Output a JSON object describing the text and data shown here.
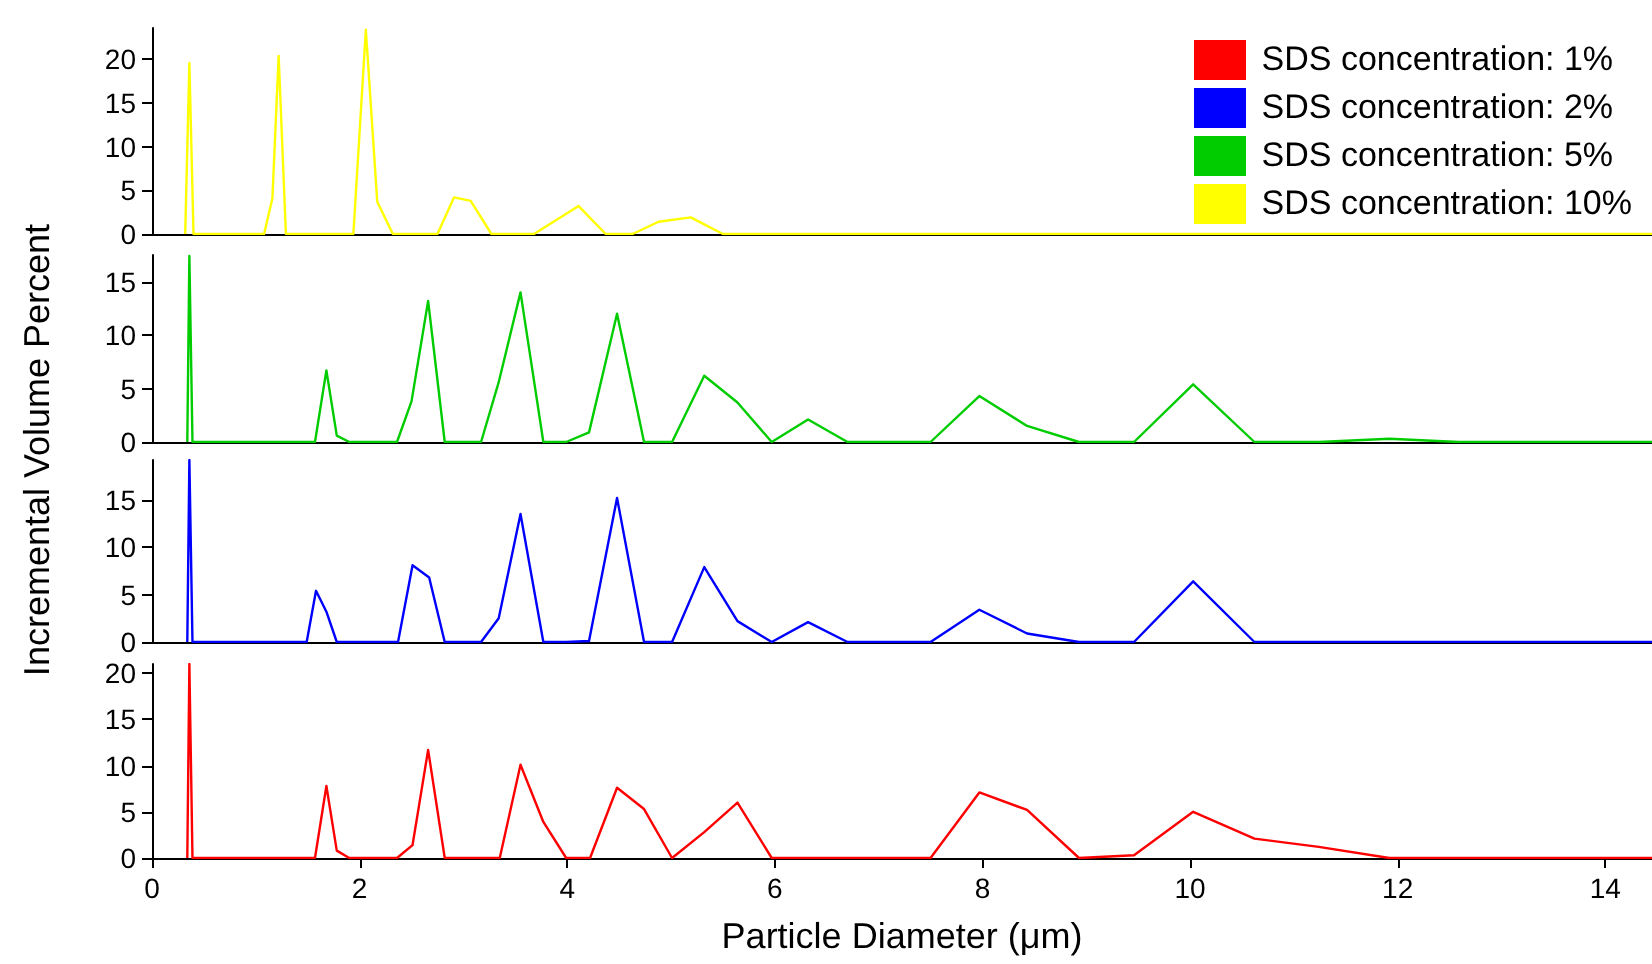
{
  "chart_data": [
    {
      "type": "line",
      "legend": "right",
      "tick_labels": "y",
      "xlim": [
        0,
        14.45
      ],
      "xticks": [
        0,
        2,
        4,
        6,
        8,
        10,
        12,
        14
      ],
      "ylim": [
        0,
        23.6
      ],
      "yticks": [
        0,
        5,
        10,
        15,
        20
      ],
      "series": [
        {
          "name": "SDS concentration: 10%",
          "color": "#ffff00",
          "x": [
            0.32,
            0.36,
            0.4,
            1.08,
            1.16,
            1.22,
            1.29,
            1.94,
            2.06,
            2.17,
            2.32,
            2.75,
            2.91,
            3.07,
            3.27,
            3.68,
            4.11,
            4.37,
            4.63,
            4.88,
            5.19,
            5.5,
            14.45
          ],
          "values": [
            0,
            19.6,
            0,
            0,
            4.1,
            20.4,
            0,
            0,
            23.4,
            3.7,
            0,
            0,
            4.2,
            3.8,
            0,
            0,
            3.2,
            0,
            0,
            1.4,
            1.9,
            0,
            0
          ]
        }
      ]
    },
    {
      "type": "line",
      "legend": "top right",
      "tick_labels": "y",
      "xlim": [
        0,
        14.45
      ],
      "xticks": [
        0,
        2,
        4,
        6,
        8,
        10,
        12,
        14
      ],
      "ylim": [
        0,
        17.5
      ],
      "yticks": [
        0,
        5,
        10,
        15
      ],
      "series": [
        {
          "name": "SDS concentration: 5%",
          "color": "#00cc00",
          "x": [
            0.34,
            0.36,
            0.39,
            1.57,
            1.68,
            1.78,
            1.9,
            2.36,
            2.5,
            2.66,
            2.82,
            3.17,
            3.34,
            3.55,
            3.77,
            3.99,
            4.21,
            4.48,
            4.74,
            5.01,
            5.32,
            5.64,
            5.97,
            6.32,
            6.7,
            7.5,
            7.97,
            8.43,
            8.93,
            9.46,
            10.03,
            10.62,
            11.24,
            11.92,
            12.59,
            14.45
          ],
          "values": [
            0,
            17.4,
            0,
            0,
            6.7,
            0.6,
            0,
            0,
            3.8,
            13.2,
            0,
            0,
            5.6,
            14.0,
            0,
            0,
            0.9,
            12.0,
            0,
            0,
            6.2,
            3.7,
            0,
            2.1,
            0,
            0,
            4.3,
            1.5,
            0,
            0,
            5.4,
            0,
            0,
            0.3,
            0,
            0
          ]
        }
      ]
    },
    {
      "type": "line",
      "legend": "top right",
      "tick_labels": "y",
      "xlim": [
        0,
        14.45
      ],
      "xticks": [
        0,
        2,
        4,
        6,
        8,
        10,
        12,
        14
      ],
      "ylim": [
        0,
        19.2
      ],
      "yticks": [
        0,
        5,
        10,
        15
      ],
      "series": [
        {
          "name": "SDS concentration: 2%",
          "color": "#0000ff",
          "x": [
            0.34,
            0.36,
            0.39,
            1.49,
            1.58,
            1.68,
            1.78,
            2.37,
            2.51,
            2.67,
            2.82,
            3.17,
            3.34,
            3.55,
            3.77,
            3.99,
            4.21,
            4.48,
            4.74,
            5.01,
            5.32,
            5.64,
            5.97,
            6.32,
            6.7,
            7.5,
            7.97,
            8.43,
            8.93,
            9.46,
            10.03,
            10.62,
            14.45
          ],
          "values": [
            0,
            19.2,
            0,
            0,
            5.4,
            3.2,
            0,
            0,
            8.1,
            6.8,
            0,
            0,
            2.5,
            13.5,
            0,
            0,
            0.1,
            15.2,
            0,
            0,
            7.9,
            2.2,
            0,
            2.1,
            0,
            0,
            3.4,
            0.9,
            0,
            0,
            6.4,
            0,
            0
          ]
        }
      ]
    },
    {
      "type": "line",
      "legend": "top right",
      "xlabel": "Particle Diameter (μm)",
      "ylabel": "Incremental Volume Percent",
      "xlim": [
        0,
        14.45
      ],
      "xticks": [
        0,
        2,
        4,
        6,
        8,
        10,
        12,
        14
      ],
      "ylim": [
        0,
        21
      ],
      "yticks": [
        0,
        5,
        10,
        15,
        20
      ],
      "series": [
        {
          "name": "SDS concentration: 1%",
          "color": "#ff0000",
          "x": [
            0.34,
            0.36,
            0.39,
            1.57,
            1.68,
            1.78,
            1.9,
            2.36,
            2.51,
            2.66,
            2.82,
            3.35,
            3.55,
            3.77,
            3.99,
            4.22,
            4.48,
            4.74,
            5.01,
            5.32,
            5.64,
            5.97,
            7.5,
            7.97,
            8.43,
            8.93,
            9.46,
            10.03,
            10.62,
            11.24,
            11.92,
            14.45
          ],
          "values": [
            0,
            21,
            0,
            0,
            7.8,
            0.8,
            0,
            0,
            1.4,
            11.7,
            0,
            0,
            10.1,
            3.9,
            0,
            0,
            7.6,
            5.3,
            0,
            2.8,
            6.0,
            0,
            0,
            7.1,
            5.2,
            0,
            0.3,
            5.0,
            2.1,
            1.2,
            0,
            0
          ]
        }
      ]
    }
  ]
}
